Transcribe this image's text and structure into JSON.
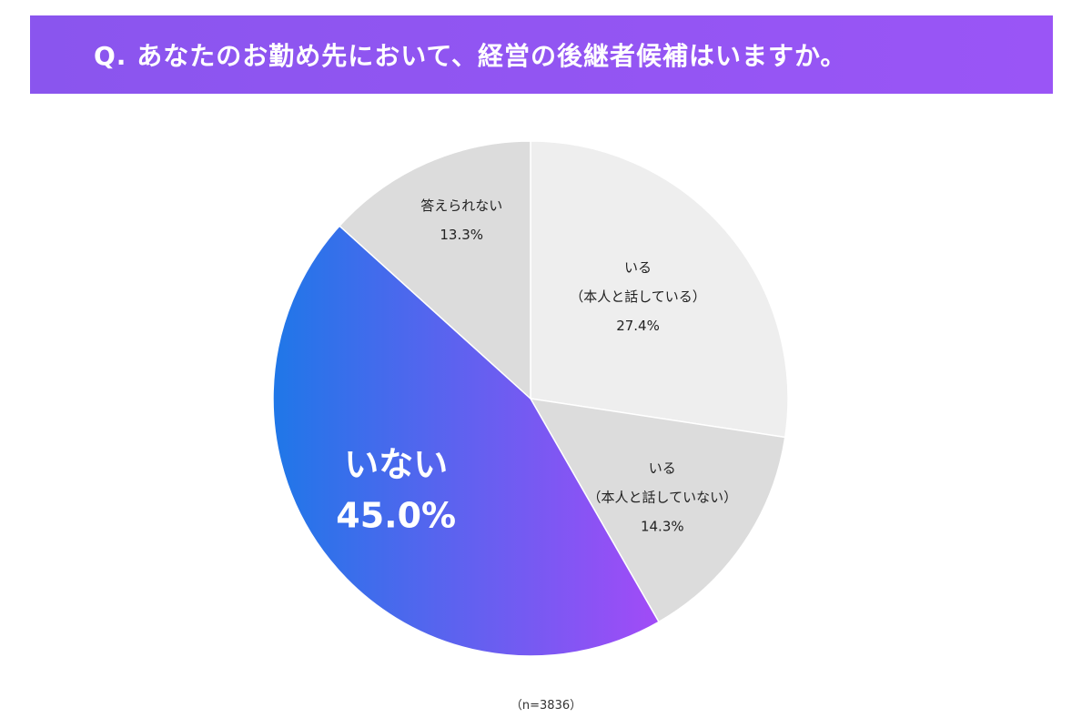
{
  "header": {
    "title": "Q. あなたのお勤め先において、経営の後継者候補はいますか。"
  },
  "chart_data": {
    "type": "pie",
    "start_angle_deg": 0,
    "direction": "clockwise",
    "slices": [
      {
        "label_lines": [
          "いる",
          "（本人と話している）"
        ],
        "value": 27.4,
        "display": "27.4%",
        "color": "#eeeeee",
        "emphasis": false
      },
      {
        "label_lines": [
          "いる",
          "（本人と話していない）"
        ],
        "value": 14.3,
        "display": "14.3%",
        "color": "#dcdcdc",
        "emphasis": false
      },
      {
        "label_lines": [
          "いない"
        ],
        "value": 45.0,
        "display": "45.0%",
        "color_gradient": [
          "#1f77e8",
          "#a24bf7"
        ],
        "emphasis": true
      },
      {
        "label_lines": [
          "答えられない"
        ],
        "value": 13.3,
        "display": "13.3%",
        "color": "#dcdcdc",
        "emphasis": false
      }
    ]
  },
  "footnote": "（n=3836）"
}
